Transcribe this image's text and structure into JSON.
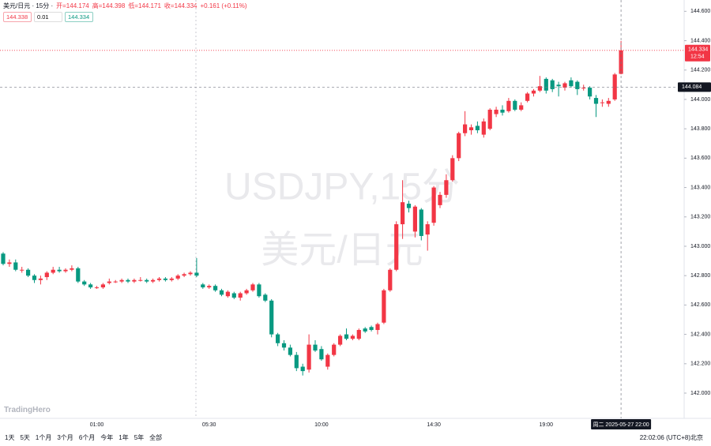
{
  "chart_data": {
    "type": "candlestick",
    "title": "美元/日元 · 15分 ·",
    "ohlc_text": [
      "开=144.174",
      "高=144.398",
      "低=144.171",
      "收=144.334"
    ],
    "change": "+0.161 (+0.11%)",
    "sell": "144.338",
    "spread": "0.01",
    "buy": "144.334",
    "watermark": [
      "USDJPY,15分",
      "美元/日元"
    ],
    "categories": [
      null,
      null,
      null,
      null,
      null,
      null,
      null,
      null,
      null,
      null,
      null,
      null,
      null,
      null,
      null,
      "01:00",
      null,
      null,
      null,
      null,
      null,
      null,
      null,
      null,
      null,
      null,
      null,
      null,
      null,
      null,
      null,
      null,
      null,
      "05:30",
      null,
      null,
      null,
      null,
      null,
      null,
      null,
      null,
      null,
      null,
      null,
      null,
      null,
      null,
      null,
      null,
      null,
      "10:00",
      null,
      null,
      null,
      null,
      null,
      null,
      null,
      null,
      null,
      null,
      null,
      null,
      null,
      null,
      null,
      null,
      null,
      "14:30",
      null,
      null,
      null,
      null,
      null,
      null,
      null,
      null,
      null,
      null,
      null,
      null,
      null,
      null,
      null,
      null,
      null,
      "19:00",
      null,
      null,
      null,
      null,
      null,
      null,
      null,
      null,
      null,
      null,
      null,
      null
    ],
    "open": [
      142.95,
      142.88,
      142.89,
      142.84,
      142.84,
      142.8,
      142.77,
      142.79,
      142.82,
      142.84,
      142.83,
      142.84,
      142.85,
      142.76,
      142.74,
      142.72,
      142.72,
      142.75,
      142.76,
      142.76,
      142.77,
      142.76,
      142.77,
      142.77,
      142.76,
      142.77,
      142.78,
      142.77,
      142.78,
      142.8,
      142.81,
      142.82,
      142.74,
      142.72,
      142.73,
      142.7,
      142.66,
      142.68,
      142.65,
      142.68,
      142.7,
      142.74,
      142.67,
      142.63,
      142.4,
      142.34,
      142.31,
      142.26,
      142.18,
      142.16,
      142.33,
      142.3,
      142.18,
      142.26,
      142.33,
      142.4,
      142.37,
      142.37,
      142.44,
      142.45,
      142.43,
      142.48,
      142.7,
      142.84,
      143.15,
      143.29,
      143.1,
      143.25,
      143.08,
      143.16,
      143.28,
      143.35,
      143.45,
      143.6,
      143.77,
      143.79,
      143.82,
      143.76,
      143.8,
      143.9,
      143.93,
      143.92,
      143.99,
      143.93,
      143.99,
      144.04,
      144.06,
      144.14,
      144.13,
      144.1,
      144.08,
      144.13,
      144.12,
      144.08,
      144.08,
      144.01,
      143.98,
      143.97,
      144.0,
      144.174
    ],
    "high": [
      142.96,
      142.91,
      142.91,
      142.86,
      142.85,
      142.81,
      142.8,
      142.83,
      142.86,
      142.86,
      142.85,
      142.87,
      142.86,
      142.77,
      142.75,
      142.73,
      142.75,
      142.78,
      142.77,
      142.78,
      142.78,
      142.78,
      142.79,
      142.78,
      142.78,
      142.79,
      142.79,
      142.79,
      142.81,
      142.82,
      142.83,
      142.92,
      142.75,
      142.74,
      142.74,
      142.71,
      142.7,
      142.69,
      142.69,
      142.71,
      142.75,
      142.75,
      142.68,
      142.64,
      142.41,
      142.36,
      142.33,
      142.28,
      142.2,
      142.4,
      142.36,
      142.32,
      142.27,
      142.34,
      142.4,
      142.44,
      142.4,
      142.44,
      142.45,
      142.46,
      142.48,
      142.71,
      142.85,
      143.17,
      143.45,
      143.31,
      143.28,
      143.26,
      143.17,
      143.41,
      143.37,
      143.49,
      143.62,
      143.78,
      143.92,
      143.83,
      143.85,
      143.87,
      143.94,
      143.95,
      143.96,
      144.01,
      144.0,
      143.98,
      144.05,
      144.07,
      144.16,
      144.15,
      144.14,
      144.12,
      144.12,
      144.15,
      144.13,
      144.1,
      144.09,
      144.03,
      144.0,
      144.01,
      144.18,
      144.398
    ],
    "low": [
      142.87,
      142.86,
      142.83,
      142.82,
      142.79,
      142.75,
      142.74,
      142.77,
      142.81,
      142.82,
      142.82,
      142.83,
      142.75,
      142.73,
      142.71,
      142.71,
      142.71,
      142.74,
      142.75,
      142.75,
      142.75,
      142.75,
      142.76,
      142.75,
      142.75,
      142.76,
      142.76,
      142.76,
      142.77,
      142.79,
      142.8,
      142.79,
      142.71,
      142.71,
      142.69,
      142.66,
      142.65,
      142.64,
      142.63,
      142.67,
      142.69,
      142.65,
      142.62,
      142.38,
      142.32,
      142.29,
      142.25,
      142.15,
      142.12,
      142.14,
      142.28,
      142.22,
      142.16,
      142.25,
      142.32,
      142.36,
      142.36,
      142.36,
      142.41,
      142.42,
      142.4,
      142.47,
      142.69,
      142.83,
      143.05,
      143.23,
      143.06,
      143.04,
      142.97,
      143.14,
      143.26,
      143.33,
      143.44,
      143.58,
      143.75,
      143.76,
      143.77,
      143.74,
      143.79,
      143.88,
      143.89,
      143.91,
      143.92,
      143.92,
      143.98,
      144.02,
      144.05,
      144.04,
      144.05,
      144.02,
      144.06,
      144.08,
      144.03,
      144.06,
      144.0,
      143.88,
      143.95,
      143.95,
      143.99,
      144.171
    ],
    "close": [
      142.88,
      142.89,
      142.84,
      142.84,
      142.8,
      142.77,
      142.78,
      142.82,
      142.84,
      142.83,
      142.84,
      142.85,
      142.76,
      142.74,
      142.72,
      142.72,
      142.74,
      142.76,
      142.76,
      142.77,
      142.76,
      142.77,
      142.77,
      142.76,
      142.77,
      142.78,
      142.77,
      142.78,
      142.8,
      142.81,
      142.82,
      142.8,
      142.72,
      142.73,
      142.7,
      142.67,
      142.69,
      142.65,
      142.68,
      142.7,
      142.74,
      142.66,
      142.63,
      142.4,
      142.34,
      142.31,
      142.26,
      142.17,
      142.15,
      142.33,
      142.29,
      142.23,
      142.26,
      142.33,
      142.39,
      142.37,
      142.39,
      142.43,
      142.42,
      142.43,
      142.47,
      142.7,
      142.84,
      143.15,
      143.3,
      143.26,
      143.27,
      143.07,
      143.15,
      143.4,
      143.35,
      143.45,
      143.6,
      143.77,
      143.83,
      143.81,
      143.79,
      143.85,
      143.93,
      143.93,
      143.91,
      143.99,
      143.93,
      143.96,
      144.04,
      144.06,
      144.09,
      144.06,
      144.07,
      144.09,
      144.11,
      144.09,
      144.07,
      144.08,
      144.02,
      143.97,
      143.98,
      143.99,
      144.17,
      144.334
    ],
    "ylim": [
      141.828,
      144.677
    ],
    "yticks": [
      {
        "value": 142.0,
        "label": "142.000"
      },
      {
        "value": 142.2,
        "label": "142.200"
      },
      {
        "value": 142.4,
        "label": "142.400"
      },
      {
        "value": 142.6,
        "label": "142.600"
      },
      {
        "value": 142.8,
        "label": "142.800"
      },
      {
        "value": 143.0,
        "label": "143.000"
      },
      {
        "value": 143.2,
        "label": "143.200"
      },
      {
        "value": 143.4,
        "label": "143.400"
      },
      {
        "value": 143.6,
        "label": "143.600"
      },
      {
        "value": 143.8,
        "label": "143.800"
      },
      {
        "value": 144.0,
        "label": "144.000"
      },
      {
        "value": 144.2,
        "label": "144.200"
      },
      {
        "value": 144.4,
        "label": "144.400"
      },
      {
        "value": 144.6,
        "label": "144.600"
      }
    ],
    "countdown": "12:54",
    "crosshair_price": 144.084,
    "crosshair_label": "周二 2025-05-27 22:00",
    "colors": {
      "up": "#f23645",
      "down": "#089981"
    }
  },
  "toolbar": {
    "ranges": [
      "1天",
      "5天",
      "1个月",
      "3个月",
      "6个月",
      "今年",
      "1年",
      "5年",
      "全部"
    ],
    "clock": "22:02:06 (UTC+8)北京"
  },
  "logo": "TradingHero"
}
